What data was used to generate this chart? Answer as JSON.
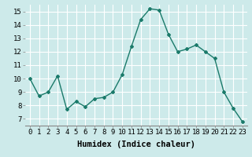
{
  "x": [
    0,
    1,
    2,
    3,
    4,
    5,
    6,
    7,
    8,
    9,
    10,
    11,
    12,
    13,
    14,
    15,
    16,
    17,
    18,
    19,
    20,
    21,
    22,
    23
  ],
  "y": [
    10.0,
    8.7,
    9.0,
    10.2,
    7.7,
    8.3,
    7.9,
    8.5,
    8.6,
    9.0,
    10.3,
    12.4,
    14.4,
    15.2,
    15.1,
    13.3,
    12.0,
    12.2,
    12.5,
    12.0,
    11.5,
    9.0,
    7.8,
    6.8
  ],
  "line_color": "#1a7a6a",
  "marker": "D",
  "marker_size": 2,
  "bg_color": "#cdeaea",
  "grid_color": "#ffffff",
  "xlabel": "Humidex (Indice chaleur)",
  "ylim": [
    6.5,
    15.5
  ],
  "xlim": [
    -0.5,
    23.5
  ],
  "yticks": [
    7,
    8,
    9,
    10,
    11,
    12,
    13,
    14,
    15
  ],
  "xticks": [
    0,
    1,
    2,
    3,
    4,
    5,
    6,
    7,
    8,
    9,
    10,
    11,
    12,
    13,
    14,
    15,
    16,
    17,
    18,
    19,
    20,
    21,
    22,
    23
  ],
  "tick_label_fontsize": 6.5,
  "xlabel_fontsize": 7.5,
  "linewidth": 1.0
}
